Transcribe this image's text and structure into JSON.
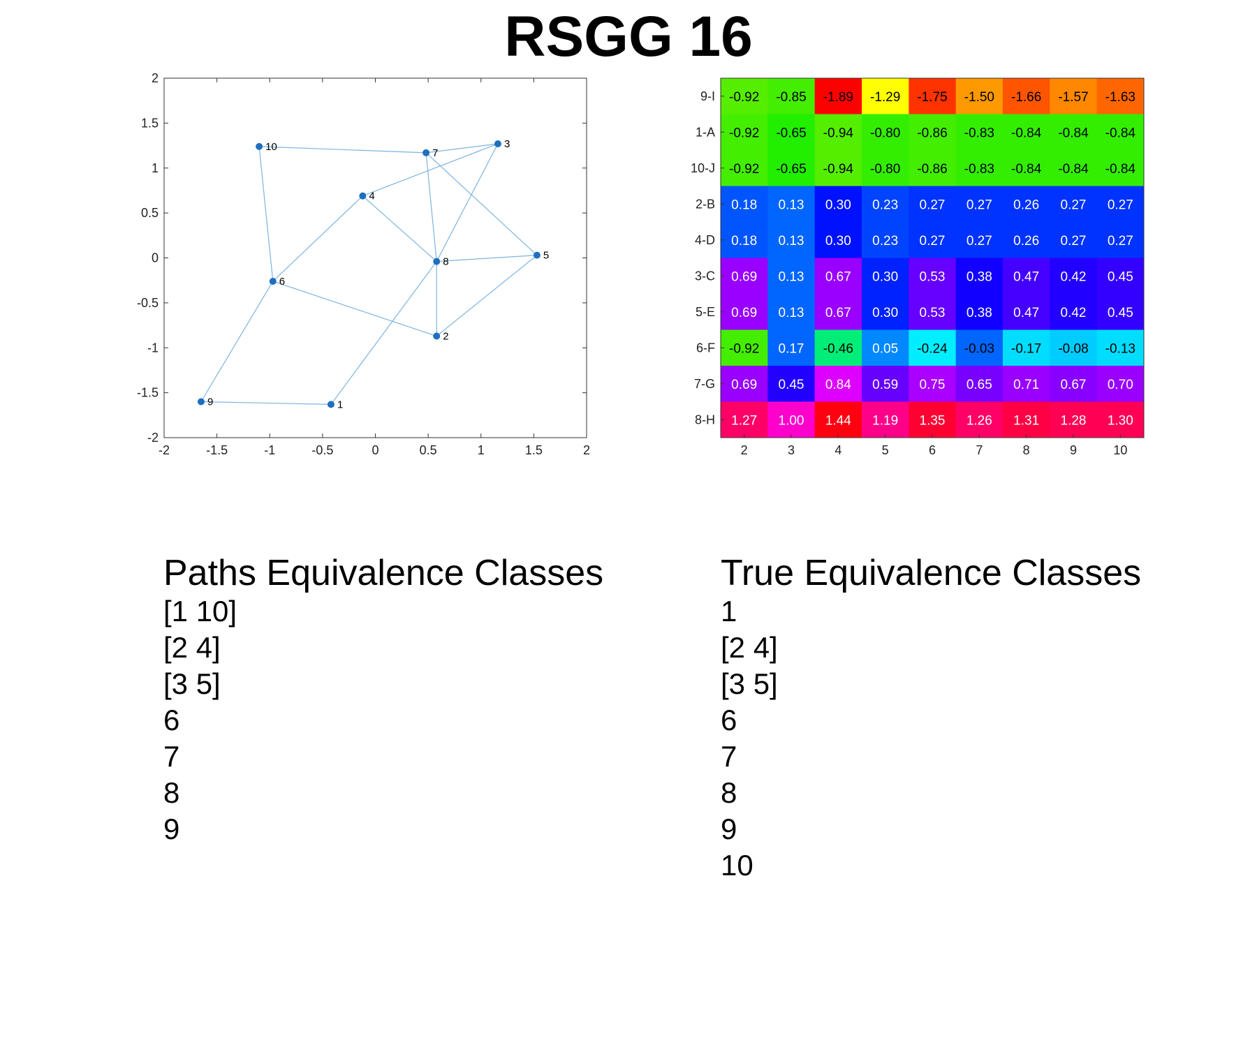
{
  "title": "RSGG 16",
  "chart_data": [
    {
      "type": "scatter",
      "title": "",
      "xlabel": "",
      "ylabel": "",
      "xlim": [
        -2,
        2
      ],
      "ylim": [
        -2,
        2
      ],
      "xticks": [
        -2,
        -1.5,
        -1,
        -0.5,
        0,
        0.5,
        1,
        1.5,
        2
      ],
      "yticks": [
        2,
        1.5,
        1,
        0.5,
        0,
        -0.5,
        -1,
        -1.5,
        -2
      ],
      "grid": false,
      "node_color": "#1f6fbf",
      "edge_color": "#7db4e0",
      "nodes": [
        {
          "id": "1",
          "x": -0.42,
          "y": -1.63
        },
        {
          "id": "2",
          "x": 0.58,
          "y": -0.87
        },
        {
          "id": "3",
          "x": 1.16,
          "y": 1.27
        },
        {
          "id": "4",
          "x": -0.12,
          "y": 0.69
        },
        {
          "id": "5",
          "x": 1.53,
          "y": 0.03
        },
        {
          "id": "6",
          "x": -0.97,
          "y": -0.26
        },
        {
          "id": "7",
          "x": 0.48,
          "y": 1.17
        },
        {
          "id": "8",
          "x": 0.58,
          "y": -0.04
        },
        {
          "id": "9",
          "x": -1.65,
          "y": -1.6
        },
        {
          "id": "10",
          "x": -1.1,
          "y": 1.24
        }
      ],
      "edges": [
        [
          "10",
          "7"
        ],
        [
          "10",
          "6"
        ],
        [
          "7",
          "3"
        ],
        [
          "7",
          "8"
        ],
        [
          "7",
          "5"
        ],
        [
          "3",
          "4"
        ],
        [
          "3",
          "8"
        ],
        [
          "4",
          "8"
        ],
        [
          "4",
          "6"
        ],
        [
          "8",
          "5"
        ],
        [
          "8",
          "2"
        ],
        [
          "8",
          "1"
        ],
        [
          "5",
          "2"
        ],
        [
          "6",
          "2"
        ],
        [
          "6",
          "9"
        ],
        [
          "9",
          "1"
        ]
      ]
    },
    {
      "type": "heatmap",
      "title": "",
      "x": [
        "2",
        "3",
        "4",
        "5",
        "6",
        "7",
        "8",
        "9",
        "10"
      ],
      "y": [
        "9-I",
        "1-A",
        "10-J",
        "2-B",
        "4-D",
        "3-C",
        "5-E",
        "6-F",
        "7-G",
        "8-H"
      ],
      "values": [
        [
          -0.92,
          -0.85,
          -1.89,
          -1.29,
          -1.75,
          -1.5,
          -1.66,
          -1.57,
          -1.63
        ],
        [
          -0.92,
          -0.65,
          -0.94,
          -0.8,
          -0.86,
          -0.83,
          -0.84,
          -0.84,
          -0.84
        ],
        [
          -0.92,
          -0.65,
          -0.94,
          -0.8,
          -0.86,
          -0.83,
          -0.84,
          -0.84,
          -0.84
        ],
        [
          0.18,
          0.13,
          0.3,
          0.23,
          0.27,
          0.27,
          0.26,
          0.27,
          0.27
        ],
        [
          0.18,
          0.13,
          0.3,
          0.23,
          0.27,
          0.27,
          0.26,
          0.27,
          0.27
        ],
        [
          0.69,
          0.13,
          0.67,
          0.3,
          0.53,
          0.38,
          0.47,
          0.42,
          0.45
        ],
        [
          0.69,
          0.13,
          0.67,
          0.3,
          0.53,
          0.38,
          0.47,
          0.42,
          0.45
        ],
        [
          -0.92,
          0.17,
          -0.46,
          0.05,
          -0.24,
          -0.03,
          -0.17,
          -0.08,
          -0.13
        ],
        [
          0.69,
          0.45,
          0.84,
          0.59,
          0.75,
          0.65,
          0.71,
          0.67,
          0.7
        ],
        [
          1.27,
          1.0,
          1.44,
          1.19,
          1.35,
          1.26,
          1.31,
          1.28,
          1.3
        ]
      ],
      "labels": [
        [
          "-0.92",
          "-0.85",
          "-1.89",
          "-1.29",
          "-1.75",
          "-1.50",
          "-1.66",
          "-1.57",
          "-1.63"
        ],
        [
          "-0.92",
          "-0.65",
          "-0.94",
          "-0.80",
          "-0.86",
          "-0.83",
          "-0.84",
          "-0.84",
          "-0.84"
        ],
        [
          "-0.92",
          "-0.65",
          "-0.94",
          "-0.80",
          "-0.86",
          "-0.83",
          "-0.84",
          "-0.84",
          "-0.84"
        ],
        [
          "0.18",
          "0.13",
          "0.30",
          "0.23",
          "0.27",
          "0.27",
          "0.26",
          "0.27",
          "0.27"
        ],
        [
          "0.18",
          "0.13",
          "0.30",
          "0.23",
          "0.27",
          "0.27",
          "0.26",
          "0.27",
          "0.27"
        ],
        [
          "0.69",
          "0.13",
          "0.67",
          "0.30",
          "0.53",
          "0.38",
          "0.47",
          "0.42",
          "0.45"
        ],
        [
          "0.69",
          "0.13",
          "0.67",
          "0.30",
          "0.53",
          "0.38",
          "0.47",
          "0.42",
          "0.45"
        ],
        [
          "-0.92",
          "0.17",
          "-0.46",
          "0.05",
          "-0.24",
          "-0.03",
          "-0.17",
          "-0.08",
          "-0.13"
        ],
        [
          "0.69",
          "0.45",
          "0.84",
          "0.59",
          "0.75",
          "0.65",
          "0.71",
          "0.67",
          "0.70"
        ],
        [
          "1.27",
          "1.00",
          "1.44",
          "1.19",
          "1.35",
          "1.26",
          "1.31",
          "1.28",
          "1.30"
        ]
      ],
      "colors": [
        [
          "#55ee00",
          "#44ee00",
          "#ff0000",
          "#ffff00",
          "#ff3300",
          "#ff9900",
          "#ff5500",
          "#ff8800",
          "#ff6600"
        ],
        [
          "#44ee00",
          "#22ee00",
          "#55ee00",
          "#33ee00",
          "#44ee00",
          "#33ee00",
          "#33ee00",
          "#33ee00",
          "#33ee00"
        ],
        [
          "#44ee00",
          "#22ee00",
          "#55ee00",
          "#33ee00",
          "#44ee00",
          "#33ee00",
          "#33ee00",
          "#33ee00",
          "#33ee00"
        ],
        [
          "#0055ff",
          "#0066ff",
          "#0011ff",
          "#0044ff",
          "#0033ff",
          "#0033ff",
          "#0033ff",
          "#0033ff",
          "#0033ff"
        ],
        [
          "#0055ff",
          "#0066ff",
          "#0011ff",
          "#0044ff",
          "#0033ff",
          "#0033ff",
          "#0033ff",
          "#0033ff",
          "#0033ff"
        ],
        [
          "#9900ff",
          "#0066ff",
          "#9900ff",
          "#0022ff",
          "#6600ff",
          "#1100ff",
          "#4400ff",
          "#2200ff",
          "#3300ff"
        ],
        [
          "#9900ff",
          "#0066ff",
          "#9900ff",
          "#0022ff",
          "#6600ff",
          "#1100ff",
          "#4400ff",
          "#2200ff",
          "#3300ff"
        ],
        [
          "#44ee00",
          "#0066ff",
          "#00ee77",
          "#0088ff",
          "#00eeff",
          "#0066ff",
          "#00ddff",
          "#00ccff",
          "#00ddff"
        ],
        [
          "#9900ff",
          "#2200ff",
          "#dd00ff",
          "#6600ff",
          "#aa00ff",
          "#7700ff",
          "#9900ff",
          "#8800ff",
          "#9900ff"
        ],
        [
          "#ff0066",
          "#ff00cc",
          "#ff0011",
          "#ff0088",
          "#ff0033",
          "#ff0066",
          "#ff0044",
          "#ff0055",
          "#ff0055"
        ]
      ],
      "dark_text_colors": [
        "#000000"
      ],
      "light_text_color": "#ffffff"
    }
  ],
  "paths_classes": {
    "title": "Paths Equivalence Classes",
    "items": [
      "[1 10]",
      "[2 4]",
      "[3 5]",
      "6",
      "7",
      "8",
      "9"
    ]
  },
  "true_classes": {
    "title": "True Equivalence Classes",
    "items": [
      "1",
      "[2 4]",
      "[3 5]",
      "6",
      "7",
      "8",
      "9",
      "10"
    ]
  }
}
